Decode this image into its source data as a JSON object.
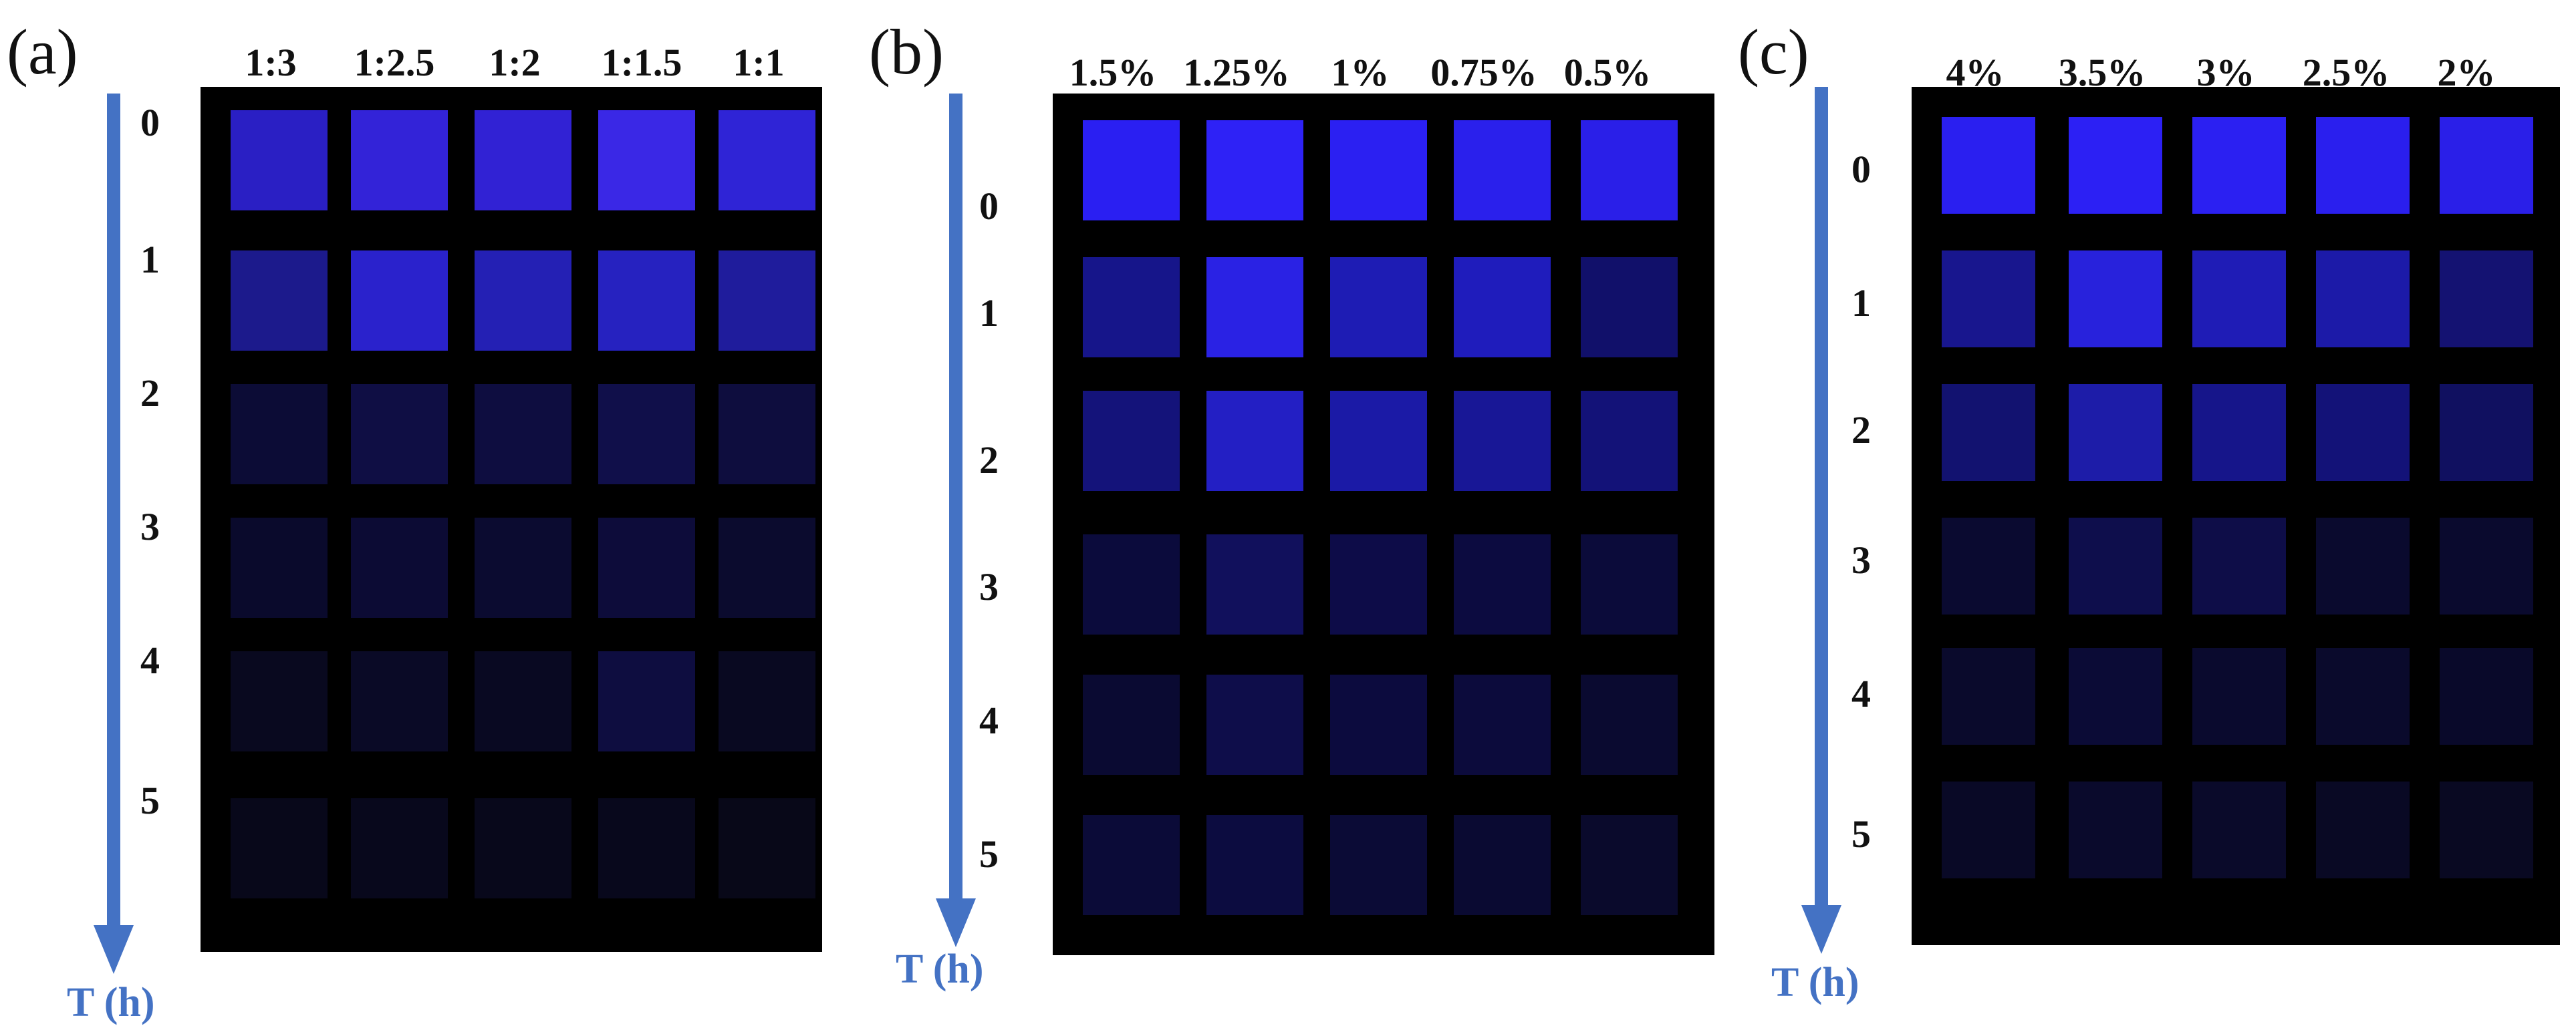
{
  "axis_color": "#4472C4",
  "panels": [
    {
      "letter": "(a)",
      "axis_label": "T (h)",
      "columns": [
        "1:3",
        "1:2.5",
        "1:2",
        "1:1.5",
        "1:1"
      ],
      "rows": [
        "0",
        "1",
        "2",
        "3",
        "4",
        "5"
      ],
      "cell_colors": [
        [
          "#2a1fc4",
          "#3323d8",
          "#3122d4",
          "#3a28e6",
          "#2f24d6"
        ],
        [
          "#1c1a8c",
          "#2a22cc",
          "#2420b4",
          "#2622c0",
          "#1f1c9c"
        ],
        [
          "#0c0c36",
          "#0f0e44",
          "#0e0d40",
          "#100f4a",
          "#0e0d3e"
        ],
        [
          "#0a0a2c",
          "#0c0b34",
          "#0b0b30",
          "#0d0c3a",
          "#0b0b2e"
        ],
        [
          "#09091f",
          "#0a0a26",
          "#090922",
          "#0e0d40",
          "#090921"
        ],
        [
          "#08081a",
          "#08081c",
          "#08081b",
          "#08081c",
          "#080818"
        ]
      ]
    },
    {
      "letter": "(b)",
      "axis_label": "T (h)",
      "columns": [
        "1.5%",
        "1.25%",
        "1%",
        "0.75%",
        "0.5%"
      ],
      "rows": [
        "0",
        "1",
        "2",
        "3",
        "4",
        "5"
      ],
      "cell_colors": [
        [
          "#2a1ff2",
          "#2e22f6",
          "#2b20f2",
          "#2a20ec",
          "#2a1fe8"
        ],
        [
          "#16158a",
          "#2a22e4",
          "#1e1cb4",
          "#1f1cbc",
          "#11106a"
        ],
        [
          "#14137a",
          "#231fc4",
          "#1b1aa6",
          "#181796",
          "#131278"
        ],
        [
          "#0b0b3c",
          "#11105c",
          "#0d0c48",
          "#0c0b40",
          "#0b0b3a"
        ],
        [
          "#0a0a32",
          "#0e0d4a",
          "#0c0b3e",
          "#0c0b3c",
          "#0a0a30"
        ],
        [
          "#0b0b38",
          "#0c0c40",
          "#0b0b36",
          "#0a0a32",
          "#0a0a2c"
        ]
      ]
    },
    {
      "letter": "(c)",
      "axis_label": "T (h)",
      "columns": [
        "4%",
        "3.5%",
        "3%",
        "2.5%",
        "2%"
      ],
      "rows": [
        "0",
        "1",
        "2",
        "3",
        "4",
        "5"
      ],
      "cell_colors": [
        [
          "#2a1ff0",
          "#2c20f4",
          "#2b20f2",
          "#2a1fee",
          "#2a1fe8"
        ],
        [
          "#18168e",
          "#2822dc",
          "#1f1cb6",
          "#1c1aa8",
          "#141272"
        ],
        [
          "#121270",
          "#1d1ca8",
          "#16158a",
          "#131278",
          "#101060"
        ],
        [
          "#0a0a30",
          "#0e0e4c",
          "#0e0d48",
          "#0a0a2e",
          "#0a0a2e"
        ],
        [
          "#0a0a2c",
          "#0b0b36",
          "#0a0a2e",
          "#0a0a2c",
          "#09092a"
        ],
        [
          "#090926",
          "#0a0a2c",
          "#0a0a2a",
          "#090924",
          "#090922"
        ]
      ]
    }
  ]
}
